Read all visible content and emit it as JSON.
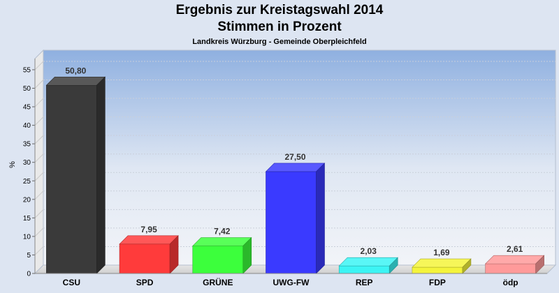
{
  "chart_data": {
    "type": "bar",
    "title": "Ergebnis zur Kreistagswahl 2014",
    "title2": "Stimmen in Prozent",
    "subtitle": "Landkreis Würzburg - Gemeinde Oberpleichfeld",
    "ylabel": "%",
    "xlabel": "",
    "ylim": [
      0,
      58
    ],
    "yticks": [
      0,
      5,
      10,
      15,
      20,
      25,
      30,
      35,
      40,
      45,
      50,
      55
    ],
    "grid": true,
    "categories": [
      "CSU",
      "SPD",
      "GRÜNE",
      "UWG-FW",
      "REP",
      "FDP",
      "ödp"
    ],
    "values": [
      50.8,
      7.95,
      7.42,
      27.5,
      2.03,
      1.69,
      2.61
    ],
    "labels": [
      "50,80",
      "7,95",
      "7,42",
      "27,50",
      "2,03",
      "1,69",
      "2,61"
    ],
    "colors": [
      "#3a3a3a",
      "#ff3b3b",
      "#3cff3c",
      "#3a3aff",
      "#3cf4f4",
      "#f4f43c",
      "#ff9a9a"
    ]
  }
}
